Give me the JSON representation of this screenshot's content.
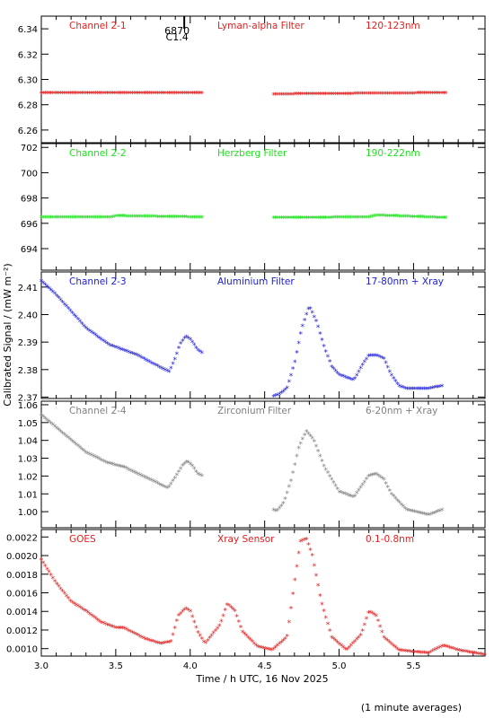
{
  "ylabel": "Calibrated Signal / (mW m⁻²)",
  "xlabel": "Time / h UTC, 16 Nov 2025",
  "footnote": "(1 minute averages)",
  "marker": {
    "label1": "6870",
    "label2": "C1.4",
    "x": 3.96
  },
  "chart_data": [
    {
      "type": "scatter",
      "series": [
        {
          "name": "Channel 2-1",
          "x": [
            3.0,
            4.08,
            4.55,
            5.72
          ],
          "y": [
            6.289,
            6.289,
            6.288,
            6.289
          ]
        }
      ],
      "labels": [
        "Channel 2-1",
        "Lyman-alpha Filter",
        "120-123nm"
      ],
      "color": "#e02020",
      "xlim": [
        3.0,
        5.98
      ],
      "ylim": [
        6.25,
        6.35
      ],
      "yticks": [
        "6.34",
        "6.32",
        "6.30",
        "6.28",
        "6.26"
      ],
      "ytick_values": [
        6.34,
        6.32,
        6.3,
        6.28,
        6.26
      ]
    },
    {
      "type": "scatter",
      "series": [
        {
          "name": "Channel 2-2",
          "x": [
            3.0,
            3.47,
            3.5,
            4.08,
            4.55,
            5.2,
            5.25,
            5.72
          ],
          "y": [
            696.45,
            696.45,
            696.55,
            696.45,
            696.4,
            696.45,
            696.6,
            696.4
          ]
        }
      ],
      "labels": [
        "Channel 2-2",
        "Herzberg Filter",
        "190-222nm"
      ],
      "color": "#20e020",
      "xlim": [
        3.0,
        5.98
      ],
      "ylim": [
        692.3,
        702.3
      ],
      "yticks": [
        "702",
        "700",
        "698",
        "696",
        "694"
      ],
      "ytick_values": [
        702,
        700,
        698,
        696,
        694
      ]
    },
    {
      "type": "scatter",
      "series": [
        {
          "name": "Channel 2-3",
          "x": [
            3.0,
            3.1,
            3.2,
            3.3,
            3.45,
            3.55,
            3.65,
            3.75,
            3.86,
            3.9,
            3.93,
            3.97,
            4.0,
            4.05,
            4.55,
            4.6,
            4.65,
            4.7,
            4.75,
            4.8,
            4.85,
            4.9,
            4.95,
            5.0,
            5.1,
            5.15,
            5.2,
            5.25,
            5.3,
            5.35,
            5.4,
            5.45,
            5.5,
            5.6,
            5.7
          ],
          "y": [
            2.412,
            2.407,
            2.401,
            2.395,
            2.389,
            2.387,
            2.385,
            2.382,
            2.379,
            2.384,
            2.389,
            2.392,
            2.391,
            2.387,
            2.37,
            2.371,
            2.373,
            2.382,
            2.395,
            2.403,
            2.397,
            2.388,
            2.381,
            2.378,
            2.376,
            2.381,
            2.385,
            2.385,
            2.384,
            2.378,
            2.374,
            2.373,
            2.373,
            2.373,
            2.374
          ]
        }
      ],
      "labels": [
        "Channel 2-3",
        "Aluminium Filter",
        "17-80nm + Xray"
      ],
      "color": "#2020d8",
      "xlim": [
        3.0,
        5.98
      ],
      "ylim": [
        2.3695,
        2.4155
      ],
      "yticks": [
        "2.41",
        "2.40",
        "2.39",
        "2.38",
        "2.37"
      ],
      "ytick_values": [
        2.41,
        2.4,
        2.39,
        2.38,
        2.37
      ]
    },
    {
      "type": "scatter",
      "series": [
        {
          "name": "Channel 2-4",
          "x": [
            3.0,
            3.1,
            3.2,
            3.3,
            3.45,
            3.55,
            3.65,
            3.75,
            3.85,
            3.9,
            3.95,
            3.98,
            4.02,
            4.05,
            4.58,
            4.63,
            4.68,
            4.73,
            4.78,
            4.83,
            4.9,
            5.0,
            5.1,
            5.2,
            5.25,
            5.3,
            5.35,
            5.45,
            5.6,
            5.7
          ],
          "y": [
            1.054,
            1.047,
            1.04,
            1.033,
            1.027,
            1.025,
            1.021,
            1.017,
            1.013,
            1.019,
            1.026,
            1.028,
            1.025,
            1.021,
            1.0,
            1.005,
            1.018,
            1.036,
            1.045,
            1.04,
            1.025,
            1.011,
            1.008,
            1.02,
            1.021,
            1.018,
            1.01,
            1.001,
            0.998,
            1.001
          ]
        }
      ],
      "labels": [
        "Channel 2-4",
        "Zirconium Filter",
        "6-20nm + Xray"
      ],
      "color": "#808080",
      "xlim": [
        3.0,
        5.98
      ],
      "ylim": [
        0.991,
        1.062
      ],
      "yticks": [
        "1.06",
        "1.05",
        "1.04",
        "1.03",
        "1.02",
        "1.01",
        "1.00"
      ],
      "ytick_values": [
        1.06,
        1.05,
        1.04,
        1.03,
        1.02,
        1.01,
        1.0
      ]
    },
    {
      "type": "scatter",
      "series": [
        {
          "name": "GOES",
          "x": [
            3.0,
            3.1,
            3.2,
            3.3,
            3.4,
            3.5,
            3.55,
            3.6,
            3.7,
            3.8,
            3.87,
            3.92,
            3.97,
            4.0,
            4.05,
            4.1,
            4.2,
            4.25,
            4.3,
            4.35,
            4.45,
            4.55,
            4.65,
            4.7,
            4.74,
            4.78,
            4.82,
            4.88,
            4.95,
            5.05,
            5.15,
            5.2,
            5.25,
            5.3,
            5.4,
            5.5,
            5.6,
            5.7,
            5.8,
            5.98
          ],
          "y": [
            0.00195,
            0.0017,
            0.0015,
            0.0014,
            0.00128,
            0.00122,
            0.00122,
            0.00118,
            0.0011,
            0.00105,
            0.00107,
            0.00135,
            0.00143,
            0.0014,
            0.00118,
            0.00105,
            0.00125,
            0.00148,
            0.0014,
            0.00118,
            0.00102,
            0.00098,
            0.00112,
            0.0017,
            0.00215,
            0.00218,
            0.002,
            0.0015,
            0.00112,
            0.00098,
            0.00115,
            0.0014,
            0.00135,
            0.00112,
            0.00098,
            0.00096,
            0.00095,
            0.00103,
            0.00098,
            0.00093
          ]
        }
      ],
      "labels": [
        "GOES",
        "Xray Sensor",
        "0.1-0.8nm"
      ],
      "color": "#e02020",
      "xlim": [
        3.0,
        5.98
      ],
      "ylim": [
        0.00092,
        0.00228
      ],
      "yticks": [
        "0.0022",
        "0.0020",
        "0.0018",
        "0.0016",
        "0.0014",
        "0.0012",
        "0.0010"
      ],
      "ytick_values": [
        0.0022,
        0.002,
        0.0018,
        0.0016,
        0.0014,
        0.0012,
        0.001
      ],
      "xticks": [
        "3.0",
        "3.5",
        "4.0",
        "4.5",
        "5.0",
        "5.5"
      ],
      "xtick_values": [
        3.0,
        3.5,
        4.0,
        4.5,
        5.0,
        5.5
      ]
    }
  ]
}
